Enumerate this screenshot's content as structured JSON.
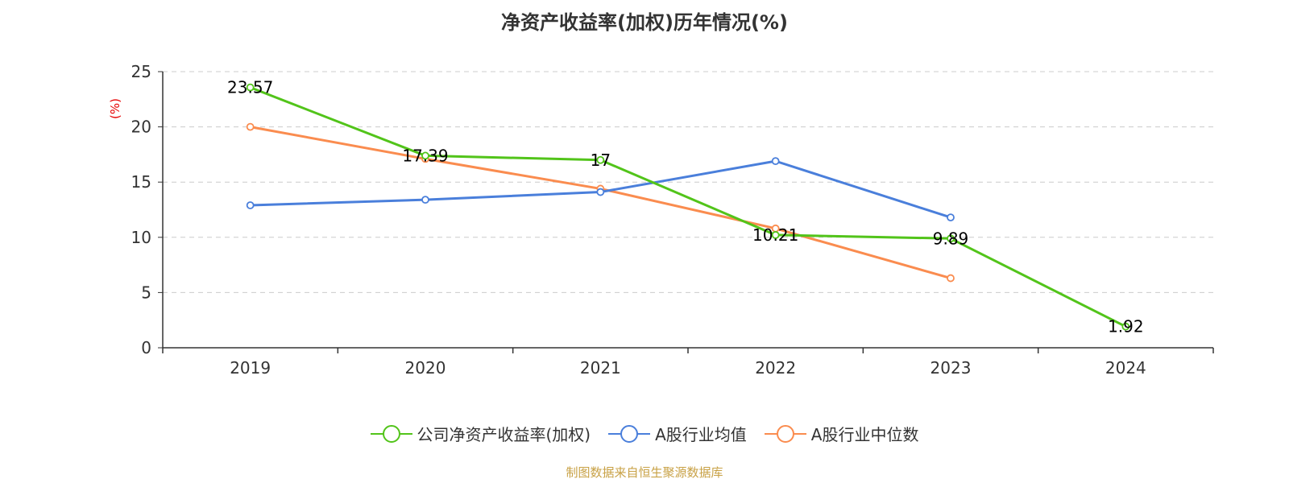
{
  "chart_data": {
    "type": "line",
    "title": "净资产收益率(加权)历年情况(%)",
    "ylabel": "(%)",
    "xlabel": "",
    "categories": [
      "2019",
      "2020",
      "2021",
      "2022",
      "2023",
      "2024"
    ],
    "ylim": [
      0,
      25
    ],
    "yticks": [
      0,
      5,
      10,
      15,
      20,
      25
    ],
    "grid": true,
    "legend_position": "bottom",
    "series": [
      {
        "name": "公司净资产收益率(加权)",
        "color": "#52c41a",
        "values": [
          23.57,
          17.39,
          17,
          10.21,
          9.89,
          1.92
        ],
        "labels": [
          "23.57",
          "17.39",
          "17",
          "10.21",
          "9.89",
          "1.92"
        ]
      },
      {
        "name": "A股行业均值",
        "color": "#4a7fdb",
        "values": [
          12.9,
          13.4,
          14.1,
          16.9,
          11.8,
          null
        ]
      },
      {
        "name": "A股行业中位数",
        "color": "#fa8c4f",
        "values": [
          20.0,
          17.1,
          14.4,
          10.8,
          6.3,
          null
        ]
      }
    ]
  },
  "footer": {
    "source": "制图数据来自恒生聚源数据库"
  }
}
